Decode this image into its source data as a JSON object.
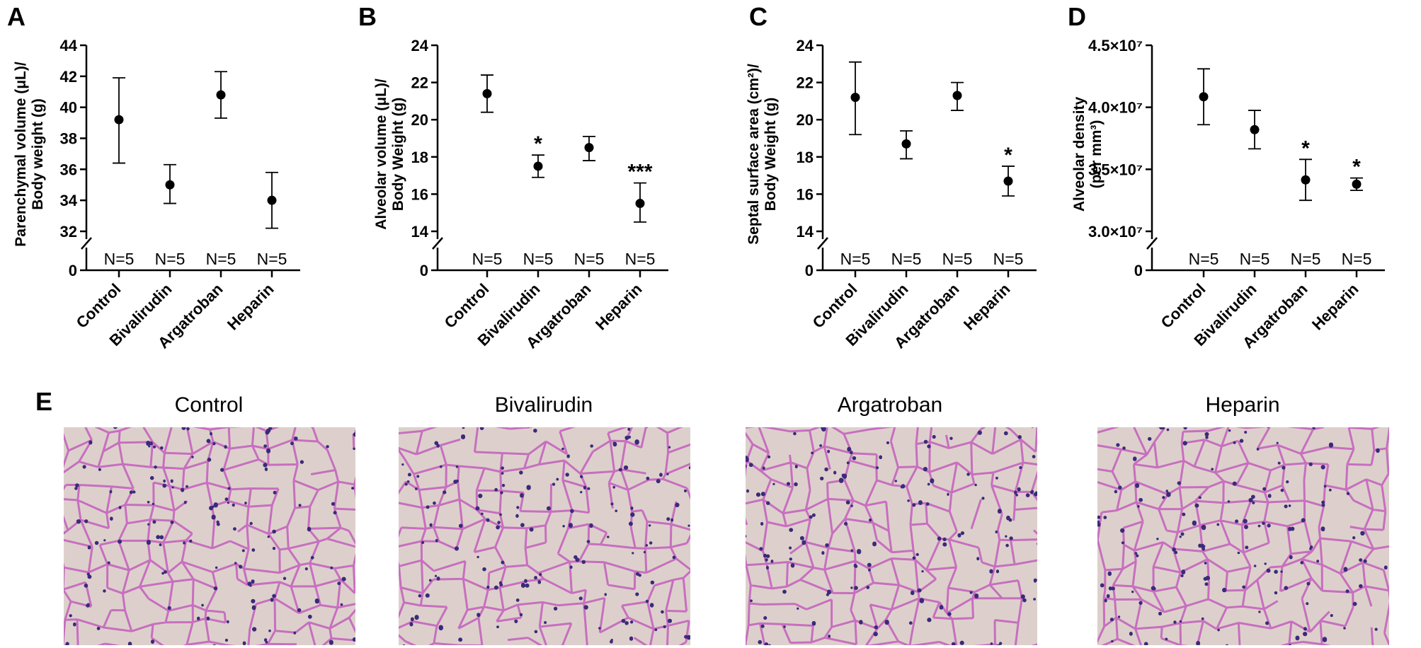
{
  "chart_data": [
    {
      "panel": "A",
      "type": "scatter",
      "ylabel": [
        "Parenchymal volume (μL)/",
        "Body weight (g)"
      ],
      "categories": [
        "Control",
        "Bivalirudin",
        "Argatroban",
        "Heparin"
      ],
      "n_labels": [
        "N=5",
        "N=5",
        "N=5",
        "N=5"
      ],
      "yticks": [
        32,
        34,
        36,
        38,
        40,
        42,
        44
      ],
      "ylim": [
        32,
        44
      ],
      "zero_label": "0",
      "values": [
        39.2,
        35.0,
        40.8,
        34.0
      ],
      "err_high": [
        41.9,
        36.3,
        42.3,
        35.8
      ],
      "err_low": [
        36.4,
        33.8,
        39.3,
        32.2
      ],
      "significance": [
        "",
        "",
        "",
        ""
      ]
    },
    {
      "panel": "B",
      "type": "scatter",
      "ylabel": [
        "Alveolar volume (μL)/",
        "Body Weight (g)"
      ],
      "categories": [
        "Control",
        "Bivalirudin",
        "Argatroban",
        "Heparin"
      ],
      "n_labels": [
        "N=5",
        "N=5",
        "N=5",
        "N=5"
      ],
      "yticks": [
        14,
        16,
        18,
        20,
        22,
        24
      ],
      "ylim": [
        14,
        24
      ],
      "zero_label": "0",
      "values": [
        21.4,
        17.5,
        18.5,
        15.5
      ],
      "err_high": [
        22.4,
        18.1,
        19.1,
        16.6
      ],
      "err_low": [
        20.4,
        16.9,
        17.8,
        14.5
      ],
      "significance": [
        "",
        "*",
        "",
        "***"
      ]
    },
    {
      "panel": "C",
      "type": "scatter",
      "ylabel": [
        "Septal surface area (cm²)/",
        "Body Weight (g)"
      ],
      "categories": [
        "Control",
        "Bivalirudin",
        "Argatroban",
        "Heparin"
      ],
      "n_labels": [
        "N=5",
        "N=5",
        "N=5",
        "N=5"
      ],
      "yticks": [
        14,
        16,
        18,
        20,
        22,
        24
      ],
      "ylim": [
        14,
        24
      ],
      "zero_label": "0",
      "values": [
        21.2,
        18.7,
        21.3,
        16.7
      ],
      "err_high": [
        23.1,
        19.4,
        22.0,
        17.5
      ],
      "err_low": [
        19.2,
        17.9,
        20.5,
        15.9
      ],
      "significance": [
        "",
        "",
        "",
        "*"
      ]
    },
    {
      "panel": "D",
      "type": "scatter",
      "ylabel": [
        "Alveolar density",
        "(per mm³)"
      ],
      "categories": [
        "Control",
        "Bivalirudin",
        "Argatroban",
        "Heparin"
      ],
      "n_labels": [
        "N=5",
        "N=5",
        "N=5",
        "N=5"
      ],
      "yticks": [
        30000000,
        35000000,
        40000000,
        45000000
      ],
      "ytick_labels": [
        "3.0×10⁷",
        "3.5×10⁷",
        "4.0×10⁷",
        "4.5×10⁷"
      ],
      "ylim": [
        30000000,
        45000000
      ],
      "zero_label": "0",
      "values": [
        40850000,
        38200000,
        34150000,
        33800000
      ],
      "err_high": [
        43100000,
        39750000,
        35800000,
        34300000
      ],
      "err_low": [
        38600000,
        36650000,
        32500000,
        33300000
      ],
      "significance": [
        "",
        "",
        "*",
        "*"
      ]
    }
  ],
  "micrographs": {
    "panel": "E",
    "titles": [
      "Control",
      "Bivalirudin",
      "Argatroban",
      "Heparin"
    ]
  },
  "colors": {
    "tissue_bg": "#ddd0cc",
    "septa": "#c76fbf",
    "nuclei": "#3b2a7a"
  }
}
